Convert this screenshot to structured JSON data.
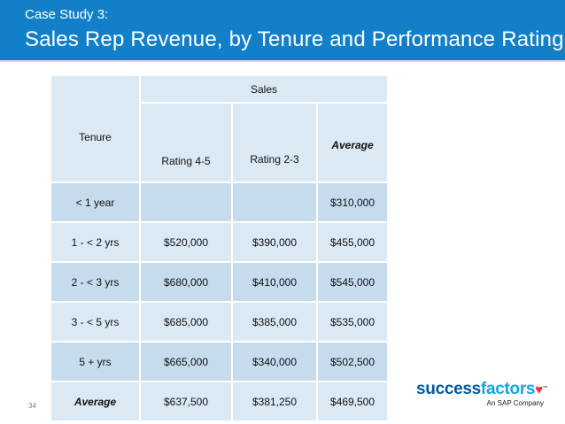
{
  "header": {
    "kicker": "Case Study 3:",
    "title": "Sales Rep Revenue, by Tenure and Performance Rating"
  },
  "table": {
    "group_header": "Sales",
    "columns": {
      "tenure": "Tenure",
      "rating_45": "Rating 4-5",
      "rating_23": "Rating 2-3",
      "average": "Average"
    },
    "rows": [
      {
        "tenure": "< 1 year",
        "rating_45": "",
        "rating_23": "",
        "average": "$310,000"
      },
      {
        "tenure": "1 - < 2 yrs",
        "rating_45": "$520,000",
        "rating_23": "$390,000",
        "average": "$455,000"
      },
      {
        "tenure": "2 - < 3 yrs",
        "rating_45": "$680,000",
        "rating_23": "$410,000",
        "average": "$545,000"
      },
      {
        "tenure": "3 - < 5 yrs",
        "rating_45": "$685,000",
        "rating_23": "$385,000",
        "average": "$535,000"
      },
      {
        "tenure": "5 + yrs",
        "rating_45": "$665,000",
        "rating_23": "$340,000",
        "average": "$502,500"
      },
      {
        "tenure": "Average",
        "rating_45": "$637,500",
        "rating_23": "$381,250",
        "average": "$469,500"
      }
    ]
  },
  "footer": {
    "page_number": "34",
    "logo": {
      "success": "success",
      "factors": "factors",
      "tagline": "An SAP Company"
    }
  }
}
